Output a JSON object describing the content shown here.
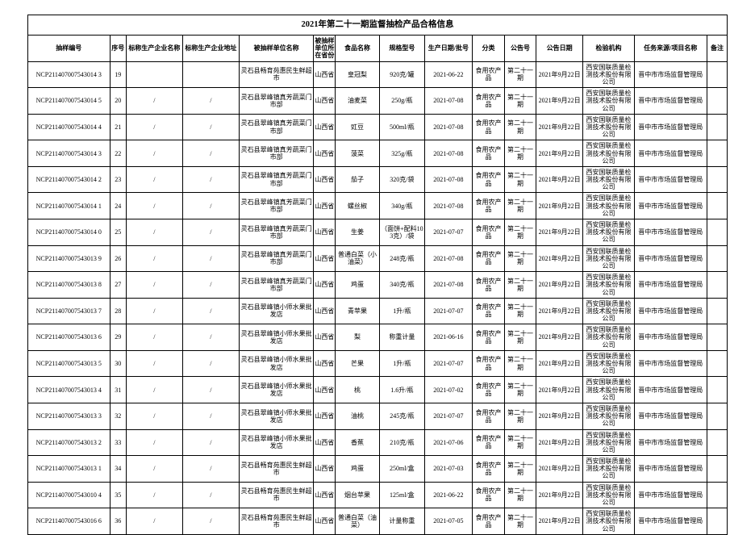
{
  "title": "2021年第二十一期监督抽检产品合格信息",
  "columns": [
    "抽样编号",
    "序号",
    "标称生产企业名称",
    "标称生产企业地址",
    "被抽样单位名称",
    "被抽样单位所在省份",
    "食品名称",
    "规格型号",
    "生产日期/批号",
    "分类",
    "公告号",
    "公告日期",
    "检验机构",
    "任务来源/项目名称",
    "备注"
  ],
  "rows": [
    {
      "id": "NCP211407007543014 3",
      "seq": "19",
      "prod": "",
      "addr": "",
      "unit": "灵石县畅育苑惠民生鲜超市",
      "prov": "山西省",
      "food": "皇冠梨",
      "spec": "920克/罐",
      "date": "2021-06-22",
      "cat": "食用农产品",
      "bull": "第二十一期",
      "bdate": "2021年9月22日",
      "lab": "西安国联质量检测技术股份有限公司",
      "task": "晋中市市场监督管理局",
      "note": ""
    },
    {
      "id": "NCP211407007543014 5",
      "seq": "20",
      "prod": "/",
      "addr": "/",
      "unit": "灵石县翠峰镇真芳蔬菜门市部",
      "prov": "山西省",
      "food": "油麦菜",
      "spec": "250g/瓶",
      "date": "2021-07-08",
      "cat": "食用农产品",
      "bull": "第二十一期",
      "bdate": "2021年9月22日",
      "lab": "西安国联质量检测技术股份有限公司",
      "task": "晋中市市场监督管理局",
      "note": ""
    },
    {
      "id": "NCP211407007543014 4",
      "seq": "21",
      "prod": "/",
      "addr": "/",
      "unit": "灵石县翠峰镇真芳蔬菜门市部",
      "prov": "山西省",
      "food": "豇豆",
      "spec": "500ml/瓶",
      "date": "2021-07-08",
      "cat": "食用农产品",
      "bull": "第二十一期",
      "bdate": "2021年9月22日",
      "lab": "西安国联质量检测技术股份有限公司",
      "task": "晋中市市场监督管理局",
      "note": ""
    },
    {
      "id": "NCP211407007543014 3",
      "seq": "22",
      "prod": "/",
      "addr": "/",
      "unit": "灵石县翠峰镇真芳蔬菜门市部",
      "prov": "山西省",
      "food": "菠菜",
      "spec": "325g/瓶",
      "date": "2021-07-08",
      "cat": "食用农产品",
      "bull": "第二十一期",
      "bdate": "2021年9月22日",
      "lab": "西安国联质量检测技术股份有限公司",
      "task": "晋中市市场监督管理局",
      "note": ""
    },
    {
      "id": "NCP211407007543014 2",
      "seq": "23",
      "prod": "/",
      "addr": "/",
      "unit": "灵石县翠峰镇真芳蔬菜门市部",
      "prov": "山西省",
      "food": "茄子",
      "spec": "320克/袋",
      "date": "2021-07-08",
      "cat": "食用农产品",
      "bull": "第二十一期",
      "bdate": "2021年9月22日",
      "lab": "西安国联质量检测技术股份有限公司",
      "task": "晋中市市场监督管理局",
      "note": ""
    },
    {
      "id": "NCP211407007543014 1",
      "seq": "24",
      "prod": "/",
      "addr": "/",
      "unit": "灵石县翠峰镇真芳蔬菜门市部",
      "prov": "山西省",
      "food": "螺丝椒",
      "spec": "340g/瓶",
      "date": "2021-07-08",
      "cat": "食用农产品",
      "bull": "第二十一期",
      "bdate": "2021年9月22日",
      "lab": "西安国联质量检测技术股份有限公司",
      "task": "晋中市市场监督管理局",
      "note": ""
    },
    {
      "id": "NCP211407007543014 0",
      "seq": "25",
      "prod": "/",
      "addr": "/",
      "unit": "灵石县翠峰镇真芳蔬菜门市部",
      "prov": "山西省",
      "food": "生姜",
      "spec": "（面饼+配料103克）/袋",
      "date": "2021-07-07",
      "cat": "食用农产品",
      "bull": "第二十一期",
      "bdate": "2021年9月22日",
      "lab": "西安国联质量检测技术股份有限公司",
      "task": "晋中市市场监督管理局",
      "note": ""
    },
    {
      "id": "NCP211407007543013 9",
      "seq": "26",
      "prod": "/",
      "addr": "/",
      "unit": "灵石县翠峰镇真芳蔬菜门市部",
      "prov": "山西省",
      "food": "普通白菜（小油菜）",
      "spec": "248克/瓶",
      "date": "2021-07-08",
      "cat": "食用农产品",
      "bull": "第二十一期",
      "bdate": "2021年9月22日",
      "lab": "西安国联质量检测技术股份有限公司",
      "task": "晋中市市场监督管理局",
      "note": ""
    },
    {
      "id": "NCP211407007543013 8",
      "seq": "27",
      "prod": "/",
      "addr": "/",
      "unit": "灵石县翠峰镇真芳蔬菜门市部",
      "prov": "山西省",
      "food": "鸡蛋",
      "spec": "340克/瓶",
      "date": "2021-07-08",
      "cat": "食用农产品",
      "bull": "第二十一期",
      "bdate": "2021年9月22日",
      "lab": "西安国联质量检测技术股份有限公司",
      "task": "晋中市市场监督管理局",
      "note": ""
    },
    {
      "id": "NCP211407007543013 7",
      "seq": "28",
      "prod": "/",
      "addr": "/",
      "unit": "灵石县翠峰镇小师水果批发店",
      "prov": "山西省",
      "food": "青苹果",
      "spec": "1升/瓶",
      "date": "2021-07-07",
      "cat": "食用农产品",
      "bull": "第二十一期",
      "bdate": "2021年9月22日",
      "lab": "西安国联质量检测技术股份有限公司",
      "task": "晋中市市场监督管理局",
      "note": ""
    },
    {
      "id": "NCP211407007543013 6",
      "seq": "29",
      "prod": "/",
      "addr": "/",
      "unit": "灵石县翠峰镇小师水果批发店",
      "prov": "山西省",
      "food": "梨",
      "spec": "称重计量",
      "date": "2021-06-16",
      "cat": "食用农产品",
      "bull": "第二十一期",
      "bdate": "2021年9月22日",
      "lab": "西安国联质量检测技术股份有限公司",
      "task": "晋中市市场监督管理局",
      "note": ""
    },
    {
      "id": "NCP211407007543013 5",
      "seq": "30",
      "prod": "/",
      "addr": "/",
      "unit": "灵石县翠峰镇小师水果批发店",
      "prov": "山西省",
      "food": "芒果",
      "spec": "1升/瓶",
      "date": "2021-07-07",
      "cat": "食用农产品",
      "bull": "第二十一期",
      "bdate": "2021年9月22日",
      "lab": "西安国联质量检测技术股份有限公司",
      "task": "晋中市市场监督管理局",
      "note": ""
    },
    {
      "id": "NCP211407007543013 4",
      "seq": "31",
      "prod": "/",
      "addr": "/",
      "unit": "灵石县翠峰镇小师水果批发店",
      "prov": "山西省",
      "food": "桃",
      "spec": "1.6升/瓶",
      "date": "2021-07-02",
      "cat": "食用农产品",
      "bull": "第二十一期",
      "bdate": "2021年9月22日",
      "lab": "西安国联质量检测技术股份有限公司",
      "task": "晋中市市场监督管理局",
      "note": ""
    },
    {
      "id": "NCP211407007543013 3",
      "seq": "32",
      "prod": "/",
      "addr": "/",
      "unit": "灵石县翠峰镇小师水果批发店",
      "prov": "山西省",
      "food": "油桃",
      "spec": "245克/瓶",
      "date": "2021-07-07",
      "cat": "食用农产品",
      "bull": "第二十一期",
      "bdate": "2021年9月22日",
      "lab": "西安国联质量检测技术股份有限公司",
      "task": "晋中市市场监督管理局",
      "note": ""
    },
    {
      "id": "NCP211407007543013 2",
      "seq": "33",
      "prod": "/",
      "addr": "/",
      "unit": "灵石县翠峰镇小师水果批发店",
      "prov": "山西省",
      "food": "香蕉",
      "spec": "210克/瓶",
      "date": "2021-07-06",
      "cat": "食用农产品",
      "bull": "第二十一期",
      "bdate": "2021年9月22日",
      "lab": "西安国联质量检测技术股份有限公司",
      "task": "晋中市市场监督管理局",
      "note": ""
    },
    {
      "id": "NCP211407007543013 1",
      "seq": "34",
      "prod": "/",
      "addr": "/",
      "unit": "灵石县畅育苑惠民生鲜超市",
      "prov": "山西省",
      "food": "鸡蛋",
      "spec": "250ml/盒",
      "date": "2021-07-03",
      "cat": "食用农产品",
      "bull": "第二十一期",
      "bdate": "2021年9月22日",
      "lab": "西安国联质量检测技术股份有限公司",
      "task": "晋中市市场监督管理局",
      "note": ""
    },
    {
      "id": "NCP211407007543010 4",
      "seq": "35",
      "prod": "/",
      "addr": "/",
      "unit": "灵石县畅育苑惠民生鲜超市",
      "prov": "山西省",
      "food": "烟台苹果",
      "spec": "125ml/盒",
      "date": "2021-06-22",
      "cat": "食用农产品",
      "bull": "第二十一期",
      "bdate": "2021年9月22日",
      "lab": "西安国联质量检测技术股份有限公司",
      "task": "晋中市市场监督管理局",
      "note": ""
    },
    {
      "id": "NCP211407007543016 6",
      "seq": "36",
      "prod": "/",
      "addr": "/",
      "unit": "灵石县畅育苑惠民生鲜超市",
      "prov": "山西省",
      "food": "普通白菜（油菜）",
      "spec": "计量称重",
      "date": "2021-07-05",
      "cat": "食用农产品",
      "bull": "第二十一期",
      "bdate": "2021年9月22日",
      "lab": "西安国联质量检测技术股份有限公司",
      "task": "晋中市市场监督管理局",
      "note": ""
    }
  ]
}
